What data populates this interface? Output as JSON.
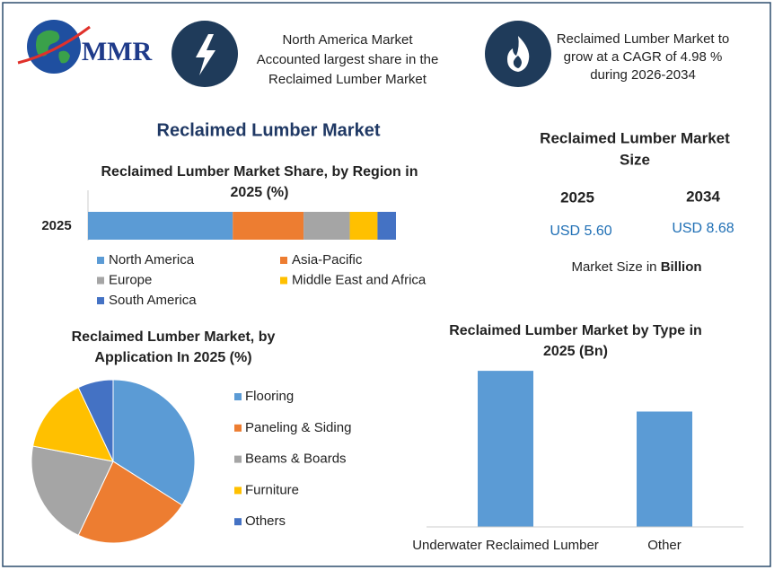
{
  "header": {
    "logo": "MMR",
    "callouts": [
      [
        "North America Market",
        "Accounted largest share in the",
        "Reclaimed Lumber Market"
      ],
      [
        "Reclaimed Lumber Market to",
        "grow at a CAGR of 4.98 %",
        "during 2026-2034"
      ]
    ]
  },
  "title": "Reclaimed Lumber Market",
  "market_size": {
    "title": [
      "Reclaimed Lumber Market",
      "Size"
    ],
    "years": [
      "2025",
      "2034"
    ],
    "values": [
      "USD 5.60",
      "USD 8.68"
    ],
    "note": [
      "Market Size in",
      "Billion"
    ]
  },
  "chart_data": [
    {
      "type": "stacked_bar",
      "title": [
        "Reclaimed Lumber Market Share, by Region in",
        "2025 (%)"
      ],
      "categories": [
        "2025"
      ],
      "xlim": [
        0,
        100
      ],
      "series": [
        {
          "name": "North America",
          "color": "#5b9bd5",
          "values": [
            47
          ]
        },
        {
          "name": "Asia-Pacific",
          "color": "#ed7d31",
          "values": [
            23
          ]
        },
        {
          "name": "Europe",
          "color": "#a5a5a5",
          "values": [
            15
          ]
        },
        {
          "name": "Middle East and Africa",
          "color": "#ffc000",
          "values": [
            9
          ]
        },
        {
          "name": "South America",
          "color": "#4472c4",
          "values": [
            6
          ]
        }
      ]
    },
    {
      "type": "pie",
      "title": [
        "Reclaimed Lumber Market, by",
        "Application In 2025 (%)"
      ],
      "categories": [
        "Flooring",
        "Paneling & Siding",
        "Beams & Boards",
        "Furniture",
        "Others"
      ],
      "values": [
        34,
        23,
        21,
        15,
        7
      ],
      "colors": [
        "#5b9bd5",
        "#ed7d31",
        "#a5a5a5",
        "#ffc000",
        "#4472c4"
      ]
    },
    {
      "type": "bar",
      "title": [
        "Reclaimed Lumber Market by Type in",
        "2025 (Bn)"
      ],
      "categories": [
        "Underwater Reclaimed Lumber",
        "Other"
      ],
      "values": [
        3.22,
        2.38
      ],
      "color": "#5b9bd5",
      "ylim": [
        0,
        3.5
      ]
    }
  ]
}
